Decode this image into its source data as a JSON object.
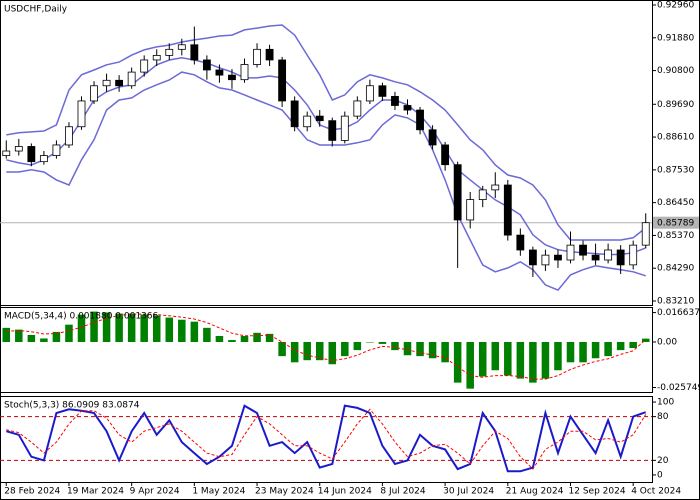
{
  "chart_data": [
    {
      "type": "candlestick",
      "title": "USDCHF,Daily",
      "categories": [
        "28 Feb 2024",
        null,
        null,
        null,
        null,
        "19 Mar 2024",
        null,
        null,
        null,
        null,
        "9 Apr 2024",
        null,
        null,
        null,
        null,
        "1 May 2024",
        null,
        null,
        null,
        null,
        "23 May 2024",
        null,
        null,
        null,
        null,
        "14 Jun 2024",
        null,
        null,
        null,
        null,
        "8 Jul 2024",
        null,
        null,
        null,
        null,
        "30 Jul 2024",
        null,
        null,
        null,
        null,
        "21 Aug 2024",
        null,
        null,
        null,
        null,
        "12 Sep 2024",
        null,
        null,
        null,
        null,
        "4 Oct 2024",
        null
      ],
      "open": [
        0.88,
        0.8815,
        0.883,
        0.878,
        0.88,
        0.8835,
        0.8895,
        0.898,
        0.903,
        0.9048,
        0.903,
        0.9075,
        0.9115,
        0.913,
        0.915,
        0.9165,
        0.9115,
        0.9082,
        0.9065,
        0.905,
        0.91,
        0.915,
        0.9115,
        0.898,
        0.8895,
        0.893,
        0.8915,
        0.885,
        0.893,
        0.898,
        0.903,
        0.8995,
        0.8965,
        0.895,
        0.8885,
        0.8835,
        0.877,
        0.8588,
        0.8655,
        0.8687,
        0.8703,
        0.8538,
        0.8489,
        0.844,
        0.8472,
        0.8456,
        0.8505,
        0.8472,
        0.8456,
        0.8489,
        0.844,
        0.8505
      ],
      "high": [
        0.885,
        0.8855,
        0.884,
        0.8815,
        0.885,
        0.891,
        0.8995,
        0.9045,
        0.907,
        0.9065,
        0.909,
        0.913,
        0.915,
        0.917,
        0.9185,
        0.9225,
        0.913,
        0.91,
        0.9085,
        0.912,
        0.917,
        0.9165,
        0.9125,
        0.8995,
        0.8945,
        0.895,
        0.8925,
        0.8945,
        0.8995,
        0.905,
        0.904,
        0.901,
        0.8985,
        0.896,
        0.89,
        0.8845,
        0.878,
        0.868,
        0.87,
        0.8745,
        0.872,
        0.856,
        0.85,
        0.849,
        0.849,
        0.855,
        0.852,
        0.851,
        0.851,
        0.8505,
        0.852,
        0.861
      ],
      "low": [
        0.879,
        0.88,
        0.8765,
        0.877,
        0.879,
        0.8825,
        0.8885,
        0.897,
        0.901,
        0.901,
        0.902,
        0.906,
        0.9095,
        0.9115,
        0.913,
        0.91,
        0.905,
        0.904,
        0.902,
        0.904,
        0.909,
        0.9095,
        0.896,
        0.888,
        0.888,
        0.8895,
        0.883,
        0.884,
        0.892,
        0.897,
        0.898,
        0.895,
        0.8935,
        0.887,
        0.882,
        0.875,
        0.843,
        0.856,
        0.863,
        0.866,
        0.852,
        0.847,
        0.84,
        0.842,
        0.843,
        0.8445,
        0.8455,
        0.844,
        0.8445,
        0.841,
        0.8425,
        0.8495
      ],
      "close": [
        0.8815,
        0.883,
        0.878,
        0.88,
        0.8835,
        0.8895,
        0.898,
        0.903,
        0.9048,
        0.903,
        0.9075,
        0.9115,
        0.913,
        0.915,
        0.9165,
        0.9115,
        0.9082,
        0.9065,
        0.905,
        0.91,
        0.915,
        0.9115,
        0.898,
        0.8895,
        0.893,
        0.8915,
        0.885,
        0.893,
        0.898,
        0.903,
        0.8995,
        0.8965,
        0.895,
        0.8885,
        0.8835,
        0.877,
        0.8588,
        0.8655,
        0.8687,
        0.8703,
        0.8538,
        0.8489,
        0.844,
        0.8472,
        0.8456,
        0.8505,
        0.8472,
        0.8456,
        0.8489,
        0.844,
        0.8505,
        0.85789
      ],
      "up_color": "#ffffff",
      "down_color": "#000000",
      "wick_color": "#000000",
      "overlays": [
        {
          "color": "#6a6ad8",
          "values": [
            0.8868,
            0.8875,
            0.8878,
            0.8881,
            0.8901,
            0.9016,
            0.9066,
            0.9082,
            0.9099,
            0.9108,
            0.9131,
            0.9148,
            0.9158,
            0.9164,
            0.9174,
            0.9181,
            0.9187,
            0.9194,
            0.9197,
            0.9214,
            0.922,
            0.9227,
            0.923,
            0.9197,
            0.9131,
            0.9066,
            0.8983,
            0.9,
            0.9043,
            0.9066,
            0.9056,
            0.9043,
            0.9033,
            0.901,
            0.8983,
            0.895,
            0.8901,
            0.8852,
            0.8819,
            0.8769,
            0.8736,
            0.8726,
            0.8703,
            0.8654,
            0.8572,
            0.8522,
            0.8522,
            0.8522,
            0.8522,
            0.8522,
            0.8529,
            0.8562
          ]
        },
        {
          "color": "#6a6ad8",
          "values": [
            0.8786,
            0.8776,
            0.8769,
            0.8786,
            0.8812,
            0.8852,
            0.8917,
            0.8983,
            0.901,
            0.9026,
            0.9033,
            0.9066,
            0.9099,
            0.9115,
            0.9122,
            0.9115,
            0.9105,
            0.9089,
            0.9075,
            0.9056,
            0.9056,
            0.9062,
            0.9056,
            0.9016,
            0.8967,
            0.8901,
            0.8885,
            0.8891,
            0.8911,
            0.895,
            0.8983,
            0.8983,
            0.8967,
            0.8934,
            0.8885,
            0.8819,
            0.8753,
            0.872,
            0.8687,
            0.8654,
            0.8631,
            0.8605,
            0.8539,
            0.8506,
            0.849,
            0.8483,
            0.848,
            0.8477,
            0.8474,
            0.8474,
            0.848,
            0.8496
          ]
        },
        {
          "color": "#6a6ad8",
          "values": [
            0.8746,
            0.8746,
            0.8753,
            0.8746,
            0.872,
            0.8703,
            0.8786,
            0.8852,
            0.895,
            0.8983,
            0.899,
            0.9016,
            0.9033,
            0.9049,
            0.9075,
            0.9066,
            0.9043,
            0.9023,
            0.9016,
            0.9,
            0.8983,
            0.8967,
            0.895,
            0.8901,
            0.8852,
            0.8835,
            0.8835,
            0.8835,
            0.8842,
            0.8852,
            0.8901,
            0.8934,
            0.8924,
            0.8901,
            0.8819,
            0.872,
            0.8605,
            0.8522,
            0.844,
            0.8417,
            0.843,
            0.845,
            0.8424,
            0.8374,
            0.8357,
            0.8407,
            0.8424,
            0.8437,
            0.843,
            0.8424,
            0.8417,
            0.8404
          ]
        }
      ],
      "last_price": {
        "value": 0.85789,
        "label": "0.85789"
      },
      "last_price_color": "#b4b4b4",
      "ylim": [
        0.83078,
        0.93125
      ],
      "yticks": [
        {
          "value": 0.9296,
          "label": "0.92960"
        },
        {
          "value": 0.9188,
          "label": "0.91880"
        },
        {
          "value": 0.908,
          "label": "0.90800"
        },
        {
          "value": 0.8969,
          "label": "0.89690"
        },
        {
          "value": 0.8861,
          "label": "0.88610"
        },
        {
          "value": 0.8753,
          "label": "0.87530"
        },
        {
          "value": 0.8645,
          "label": "0.86450"
        },
        {
          "value": 0.8537,
          "label": "0.85370"
        },
        {
          "value": 0.8429,
          "label": "0.84290"
        },
        {
          "value": 0.8321,
          "label": "0.83210"
        }
      ]
    },
    {
      "type": "bar",
      "title": "MACD(5,34,4) 0.001880 0.001366",
      "color": "#008000",
      "values": [
        0.008,
        0.007,
        0.004,
        0.002,
        0.0057,
        0.0098,
        0.0155,
        0.0172,
        0.0167,
        0.0161,
        0.0161,
        0.0155,
        0.015,
        0.0138,
        0.0126,
        0.0115,
        0.008,
        0.0034,
        0.0011,
        0.0034,
        0.0052,
        0.0046,
        -0.008,
        -0.0115,
        -0.0103,
        -0.0103,
        -0.0126,
        -0.008,
        -0.0046,
        0,
        -0.0011,
        -0.0046,
        -0.0075,
        -0.008,
        -0.0092,
        -0.0115,
        -0.023,
        -0.0264,
        -0.0195,
        -0.016,
        -0.019,
        -0.0207,
        -0.023,
        -0.0207,
        -0.016,
        -0.0115,
        -0.0115,
        -0.0092,
        -0.008,
        -0.0046,
        -0.0034,
        0.0019
      ],
      "signal": {
        "color": "#ff0000",
        "dashed": true,
        "values": [
          0.006,
          0.0065,
          0.0058,
          0.0045,
          0.0048,
          0.0062,
          0.0085,
          0.011,
          0.0135,
          0.015,
          0.0158,
          0.0158,
          0.0155,
          0.0148,
          0.014,
          0.013,
          0.011,
          0.008,
          0.005,
          0.0035,
          0.0035,
          0.004,
          0,
          -0.0045,
          -0.0075,
          -0.009,
          -0.0105,
          -0.0095,
          -0.0075,
          -0.0045,
          -0.0025,
          -0.003,
          -0.0045,
          -0.006,
          -0.0075,
          -0.009,
          -0.014,
          -0.019,
          -0.02,
          -0.019,
          -0.019,
          -0.0195,
          -0.021,
          -0.021,
          -0.019,
          -0.0155,
          -0.013,
          -0.011,
          -0.0095,
          -0.007,
          -0.005,
          0.0014
        ]
      },
      "ylim": [
        -0.0283,
        0.0198
      ],
      "yticks": [
        0.016637,
        {
          "value": 0,
          "label": "0.00"
        },
        -0.025749
      ]
    },
    {
      "type": "line",
      "title": "Stoch(5,3,3) 86.0909 83.0874",
      "series": [
        {
          "color": "#1a1acc",
          "dashed": false,
          "values": [
            60,
            55,
            25,
            20,
            85,
            90,
            88,
            85,
            60,
            20,
            60,
            85,
            55,
            75,
            45,
            30,
            15,
            25,
            40,
            95,
            85,
            40,
            45,
            30,
            45,
            10,
            15,
            95,
            92,
            85,
            40,
            15,
            20,
            55,
            40,
            35,
            8,
            15,
            85,
            60,
            5,
            5,
            10,
            85,
            30,
            80,
            55,
            30,
            75,
            25,
            80,
            86.0909
          ]
        },
        {
          "color": "#ff0000",
          "dashed": true,
          "values": [
            62,
            58,
            45,
            30,
            45,
            70,
            88,
            88,
            78,
            55,
            45,
            60,
            65,
            70,
            60,
            45,
            30,
            25,
            28,
            55,
            80,
            70,
            55,
            40,
            40,
            30,
            22,
            45,
            70,
            90,
            70,
            45,
            25,
            30,
            40,
            42,
            30,
            15,
            40,
            60,
            50,
            25,
            8,
            35,
            45,
            60,
            60,
            48,
            50,
            45,
            55,
            83.0874
          ]
        }
      ],
      "levels": [
        20,
        80
      ],
      "level_color": "#c00000",
      "ylim": [
        -9.7,
        108.3
      ],
      "yticks": [
        100,
        80,
        20,
        0
      ]
    }
  ]
}
